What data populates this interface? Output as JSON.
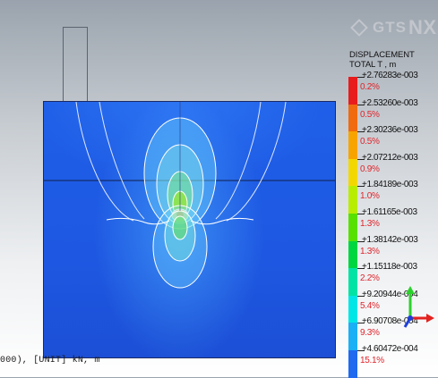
{
  "viewport": {
    "status_text": "000), [UNIT] kN, m"
  },
  "legend": {
    "logo_text_a": "GTS",
    "logo_text_b": "NX",
    "title_line1": "DISPLACEMENT",
    "title_line2": "TOTAL T , m",
    "levels": [
      {
        "value": "+2.76283e-003",
        "pct": "0.2%",
        "color": "#e81c1c"
      },
      {
        "value": "+2.53260e-003",
        "pct": "0.5%",
        "color": "#f06a10"
      },
      {
        "value": "+2.30236e-003",
        "pct": "0.5%",
        "color": "#f7a400"
      },
      {
        "value": "+2.07212e-003",
        "pct": "0.9%",
        "color": "#f2d800"
      },
      {
        "value": "+1.84189e-003",
        "pct": "1.0%",
        "color": "#b8ec00"
      },
      {
        "value": "+1.61165e-003",
        "pct": "1.3%",
        "color": "#58e000"
      },
      {
        "value": "+1.38142e-003",
        "pct": "1.3%",
        "color": "#00d640"
      },
      {
        "value": "+1.15118e-003",
        "pct": "2.2%",
        "color": "#00e3a4"
      },
      {
        "value": "+9.20944e-004",
        "pct": "5.4%",
        "color": "#00e6e6"
      },
      {
        "value": "+6.90708e-004",
        "pct": "9.3%",
        "color": "#1ab0f5"
      },
      {
        "value": "+4.60472e-004",
        "pct": "15.1%",
        "color": "#1f6aee"
      }
    ]
  }
}
